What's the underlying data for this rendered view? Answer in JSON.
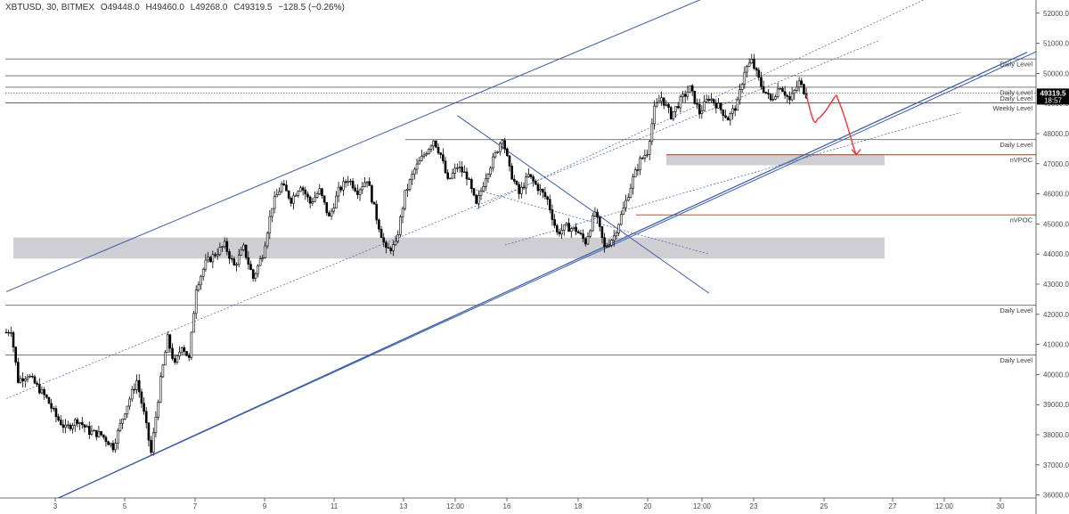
{
  "header": {
    "symbol": "XBTUSD, 30, BITMEX",
    "open": "O49448.0",
    "high": "H49460.0",
    "low": "L49268.0",
    "close": "C49319.5",
    "change": "−128.5 (−0.26%)"
  },
  "price_badge": {
    "price": "49319.5",
    "countdown": "18:57"
  },
  "colors": {
    "candle": "#000000",
    "channel": "#3f5fa8",
    "horizontal": "#666666",
    "vpoc": "#e53935",
    "zone": "#cfcfd3",
    "projection": "#e53935"
  },
  "chart_data": {
    "type": "candlestick",
    "ylim": [
      35900,
      52200
    ],
    "y_ticks": [
      "36000.0",
      "37000.0",
      "38000.0",
      "39000.0",
      "40000.0",
      "41000.0",
      "42000.0",
      "43000.0",
      "44000.0",
      "45000.0",
      "46000.0",
      "47000.0",
      "48000.0",
      "49000.0",
      "50000.0",
      "51000.0",
      "52000.0"
    ],
    "x_ticks": [
      "3",
      "5",
      "7",
      "9",
      "11",
      "13",
      "12:00",
      "16",
      "18",
      "20",
      "12:00",
      "23",
      "25",
      "27",
      "12:00",
      "30"
    ],
    "horizontal_levels": [
      {
        "price": 50480,
        "label": "Daily Level"
      },
      {
        "price": 49920,
        "label": ""
      },
      {
        "price": 49540,
        "label": "Daily Level"
      },
      {
        "price": 49350,
        "label": "Daily Level"
      },
      {
        "price": 49020,
        "label": "Weekly Level"
      },
      {
        "price": 47800,
        "label": "Daily Level"
      },
      {
        "price": 42300,
        "label": "Daily Level"
      },
      {
        "price": 40650,
        "label": "Daily Level"
      }
    ],
    "vpoc_levels": [
      {
        "price": 47300,
        "label": "nVPOC"
      },
      {
        "price": 45300,
        "label": "nVPOC"
      }
    ],
    "zones": [
      {
        "from": 43850,
        "to": 44550
      },
      {
        "from": 46950,
        "to": 47300
      }
    ],
    "price_path": [
      [
        0,
        41400
      ],
      [
        2,
        41500
      ],
      [
        5,
        39800
      ],
      [
        9,
        40000
      ],
      [
        13,
        39600
      ],
      [
        17,
        39200
      ],
      [
        21,
        38600
      ],
      [
        25,
        38200
      ],
      [
        30,
        38500
      ],
      [
        35,
        38100
      ],
      [
        40,
        38000
      ],
      [
        45,
        37600
      ],
      [
        50,
        38800
      ],
      [
        55,
        39800
      ],
      [
        58,
        38700
      ],
      [
        61,
        37400
      ],
      [
        65,
        39800
      ],
      [
        68,
        41200
      ],
      [
        71,
        40300
      ],
      [
        74,
        41000
      ],
      [
        77,
        40500
      ],
      [
        80,
        42900
      ],
      [
        84,
        43700
      ],
      [
        88,
        44000
      ],
      [
        92,
        44300
      ],
      [
        96,
        43600
      ],
      [
        100,
        44200
      ],
      [
        104,
        43200
      ],
      [
        108,
        44000
      ],
      [
        112,
        45600
      ],
      [
        116,
        46300
      ],
      [
        120,
        45800
      ],
      [
        124,
        46300
      ],
      [
        128,
        45700
      ],
      [
        132,
        46100
      ],
      [
        136,
        45200
      ],
      [
        140,
        46100
      ],
      [
        144,
        46500
      ],
      [
        148,
        46100
      ],
      [
        152,
        46500
      ],
      [
        156,
        45200
      ],
      [
        160,
        44100
      ],
      [
        164,
        44300
      ],
      [
        168,
        46000
      ],
      [
        172,
        46800
      ],
      [
        176,
        47300
      ],
      [
        180,
        47800
      ],
      [
        183,
        47300
      ],
      [
        186,
        46400
      ],
      [
        190,
        46900
      ],
      [
        194,
        46600
      ],
      [
        198,
        45600
      ],
      [
        202,
        46600
      ],
      [
        206,
        47300
      ],
      [
        209,
        47900
      ],
      [
        212,
        46800
      ],
      [
        216,
        46000
      ],
      [
        220,
        46600
      ],
      [
        224,
        46200
      ],
      [
        228,
        45800
      ],
      [
        232,
        44700
      ],
      [
        236,
        44900
      ],
      [
        240,
        44800
      ],
      [
        244,
        44400
      ],
      [
        248,
        45400
      ],
      [
        252,
        44200
      ],
      [
        256,
        44600
      ],
      [
        260,
        45500
      ],
      [
        264,
        46500
      ],
      [
        267,
        47100
      ],
      [
        270,
        47400
      ],
      [
        273,
        48800
      ],
      [
        276,
        49200
      ],
      [
        280,
        48600
      ],
      [
        284,
        49100
      ],
      [
        288,
        49500
      ],
      [
        292,
        48700
      ],
      [
        296,
        49200
      ],
      [
        300,
        48900
      ],
      [
        304,
        48500
      ],
      [
        308,
        49000
      ],
      [
        311,
        50100
      ],
      [
        314,
        50400
      ],
      [
        318,
        49600
      ],
      [
        322,
        49100
      ],
      [
        326,
        49600
      ],
      [
        330,
        49100
      ],
      [
        334,
        49700
      ],
      [
        337,
        49300
      ]
    ],
    "projection": [
      [
        337,
        49300
      ],
      [
        341,
        48500
      ],
      [
        346,
        48700
      ],
      [
        350,
        49200
      ],
      [
        354,
        48500
      ],
      [
        358,
        47300
      ]
    ],
    "channel_lines": [
      [
        [
          0,
          42750
        ],
        [
          294,
          52500
        ]
      ],
      [
        [
          22,
          35900
        ],
        [
          436,
          50800
        ]
      ],
      [
        [
          0,
          39200
        ],
        [
          368,
          51100
        ]
      ],
      [
        [
          198,
          45500
        ],
        [
          388,
          52500
        ]
      ],
      [
        [
          210,
          44300
        ],
        [
          402,
          48700
        ]
      ],
      [
        [
          190,
          48600
        ],
        [
          296,
          42700
        ]
      ],
      [
        [
          195,
          46200
        ],
        [
          296,
          44000
        ]
      ]
    ],
    "trendline_major": [
      [
        22,
        35900
      ],
      [
        430,
        50700
      ]
    ]
  }
}
